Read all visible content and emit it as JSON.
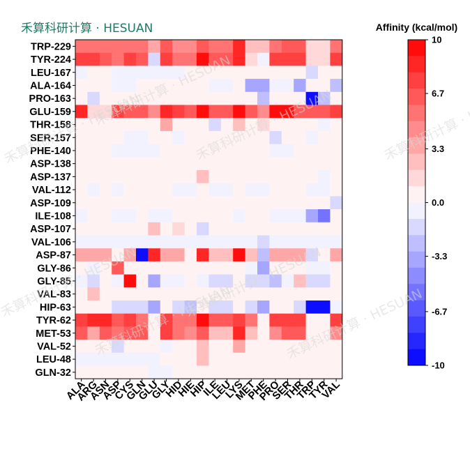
{
  "brand": {
    "text": "禾算科研计算 · HESUAN",
    "color": "#1d7a63"
  },
  "watermark": {
    "text": "禾算科研计算 · HESUAN"
  },
  "chart_data": {
    "type": "heatmap",
    "title": "",
    "xlabel": "",
    "ylabel": "",
    "colorbar": {
      "title": "Affinity (kcal/mol)",
      "min": -10,
      "max": 10,
      "levels": 20,
      "tick_values": [
        10,
        6.7,
        3.3,
        0.0,
        -3.3,
        -6.7,
        -10
      ],
      "tick_labels": [
        "10",
        "6.7",
        "3.3",
        "0.0",
        "-3.3",
        "-6.7",
        "-10"
      ],
      "colors": {
        "low": "#0000ff",
        "mid": "#ffffff",
        "high": "#ff0000"
      }
    },
    "x_categories": [
      "ALA",
      "ARG",
      "ASN",
      "ASP",
      "CYS",
      "GLN",
      "GLU",
      "GLY",
      "HID",
      "HIE",
      "HIP",
      "ILE",
      "LEU",
      "LYS",
      "MET",
      "PHE",
      "PRO",
      "SER",
      "THR",
      "TRP",
      "TYR",
      "VAL"
    ],
    "y_categories": [
      "TRP-229",
      "TYR-224",
      "LEU-167",
      "ALA-164",
      "PRO-163",
      "GLU-159",
      "THR-158",
      "SER-157",
      "PHE-140",
      "ASP-138",
      "ASP-137",
      "VAL-112",
      "ASP-109",
      "ILE-108",
      "ASP-107",
      "VAL-106",
      "ASP-87",
      "GLY-86",
      "GLY-85",
      "VAL-83",
      "HIP-63",
      "TYR-62",
      "MET-53",
      "VAL-52",
      "LEU-48",
      "GLN-32"
    ],
    "values": [
      [
        5.5,
        5.5,
        5.5,
        5.5,
        5.5,
        5.5,
        3.5,
        6.5,
        4.5,
        4.5,
        6.5,
        5.5,
        5.5,
        8.5,
        2.0,
        2.0,
        5.0,
        6.0,
        6.0,
        1.0,
        1.0,
        5.5
      ],
      [
        7.0,
        7.0,
        6.5,
        5.5,
        7.0,
        6.0,
        -2.0,
        7.5,
        5.5,
        5.5,
        9.5,
        6.5,
        6.5,
        8.5,
        1.0,
        -0.5,
        7.0,
        7.0,
        7.0,
        1.5,
        1.5,
        7.0
      ],
      [
        -0.5,
        0.5,
        0.5,
        -0.5,
        -0.5,
        -0.5,
        -0.5,
        -0.5,
        -0.5,
        0.5,
        0.5,
        0.5,
        0.5,
        0.5,
        0.5,
        0.5,
        0.5,
        0.5,
        0.5,
        -1.5,
        0.5,
        0.5
      ],
      [
        0.5,
        0.5,
        0.5,
        -0.5,
        -0.5,
        0.5,
        0.5,
        0.5,
        0.5,
        0.5,
        0.5,
        -0.5,
        -0.5,
        0.5,
        -3.5,
        -3.5,
        -0.5,
        -0.5,
        -4.0,
        0.5,
        0.5,
        -2.5
      ],
      [
        0.5,
        -1.5,
        0.5,
        0.5,
        0.5,
        0.5,
        0.5,
        0.5,
        0.5,
        0.5,
        0.5,
        0.5,
        0.5,
        0.5,
        0.5,
        -2.5,
        0.5,
        0.5,
        0.5,
        -9.5,
        -3.0,
        0.5
      ],
      [
        8.5,
        1.0,
        1.5,
        7.5,
        6.5,
        6.5,
        4.5,
        8.0,
        7.0,
        6.5,
        9.0,
        6.5,
        6.5,
        9.0,
        6.5,
        4.5,
        9.5,
        9.0,
        6.5,
        6.5,
        6.5,
        7.0
      ],
      [
        0.5,
        0.5,
        0.5,
        0.5,
        0.5,
        0.5,
        0.5,
        3.0,
        0.5,
        0.5,
        0.5,
        -1.5,
        0.5,
        2.5,
        0.5,
        1.5,
        0.5,
        0.5,
        0.5,
        0.5,
        -1.0,
        0.5
      ],
      [
        0.5,
        0.5,
        0.5,
        0.5,
        -0.5,
        -0.5,
        0.5,
        0.5,
        -0.5,
        0.5,
        0.5,
        0.5,
        0.5,
        0.5,
        0.5,
        0.5,
        -1.5,
        0.5,
        0.5,
        -0.5,
        0.5,
        0.5
      ],
      [
        0.5,
        0.5,
        0.5,
        -0.5,
        -0.5,
        -0.5,
        -0.5,
        0.5,
        0.5,
        0.5,
        0.5,
        0.5,
        0.5,
        0.5,
        0.5,
        0.5,
        -0.5,
        -0.5,
        0.5,
        0.5,
        0.5,
        0.5
      ],
      [
        0.5,
        0.5,
        0.5,
        0.5,
        0.5,
        0.5,
        0.5,
        0.5,
        0.5,
        0.5,
        0.5,
        0.5,
        0.5,
        0.5,
        0.5,
        0.5,
        0.5,
        0.5,
        0.5,
        0.5,
        0.5,
        0.5
      ],
      [
        0.5,
        0.5,
        0.5,
        0.5,
        0.5,
        0.5,
        0.5,
        0.5,
        0.5,
        0.5,
        2.5,
        0.5,
        0.5,
        0.5,
        0.5,
        0.5,
        0.5,
        0.5,
        0.5,
        0.5,
        -0.5,
        0.5
      ],
      [
        0.5,
        -0.5,
        0.5,
        -0.5,
        0.5,
        0.5,
        0.5,
        0.5,
        -0.5,
        -0.5,
        0.5,
        -0.5,
        -0.5,
        0.5,
        -0.5,
        -0.5,
        0.5,
        0.5,
        0.5,
        -0.5,
        -0.5,
        0.5
      ],
      [
        0.5,
        0.5,
        0.5,
        0.5,
        0.5,
        0.5,
        0.5,
        0.5,
        0.5,
        0.5,
        0.5,
        0.5,
        0.5,
        0.5,
        0.5,
        0.5,
        0.5,
        0.5,
        0.5,
        0.5,
        0.5,
        -1.5
      ],
      [
        -0.5,
        0.5,
        0.5,
        -0.5,
        -0.5,
        0.5,
        -0.5,
        -0.5,
        0.5,
        0.5,
        0.5,
        0.5,
        0.5,
        -0.5,
        0.5,
        0.5,
        -0.5,
        -0.5,
        -0.5,
        -3.5,
        -5.5,
        0.5
      ],
      [
        0.5,
        0.5,
        0.5,
        0.5,
        0.5,
        0.5,
        2.0,
        0.5,
        1.5,
        0.5,
        -1.5,
        0.5,
        0.5,
        0.5,
        0.5,
        0.5,
        0.5,
        0.5,
        0.5,
        0.5,
        0.5,
        0.5
      ],
      [
        -0.5,
        -0.5,
        -0.5,
        -0.5,
        -0.5,
        -0.5,
        -0.5,
        -0.5,
        -0.5,
        -0.5,
        -0.5,
        -0.5,
        -0.5,
        -0.5,
        -0.5,
        -2.0,
        -0.5,
        -0.5,
        -0.5,
        -0.5,
        -0.5,
        -0.5
      ],
      [
        3.0,
        3.0,
        3.0,
        0.5,
        3.0,
        -9.5,
        8.5,
        3.0,
        3.0,
        0.5,
        8.0,
        2.5,
        2.5,
        9.0,
        2.0,
        -2.5,
        3.5,
        3.5,
        3.5,
        -1.5,
        0.5,
        3.0
      ],
      [
        0.5,
        -0.5,
        0.5,
        6.5,
        0.5,
        0.5,
        0.5,
        0.5,
        0.5,
        0.5,
        0.5,
        0.5,
        0.5,
        0.5,
        -0.5,
        -4.0,
        0.5,
        0.5,
        0.5,
        -1.0,
        -1.0,
        0.5
      ],
      [
        -0.5,
        -1.5,
        0.5,
        -0.5,
        9.0,
        0.5,
        -4.0,
        -0.5,
        -0.5,
        0.5,
        -0.5,
        -2.0,
        -2.0,
        0.5,
        -1.5,
        -1.5,
        -3.0,
        -0.5,
        2.5,
        -1.5,
        -1.5,
        0.5
      ],
      [
        0.5,
        2.5,
        0.5,
        0.5,
        0.5,
        0.5,
        0.5,
        0.5,
        0.5,
        0.5,
        0.5,
        0.5,
        0.5,
        0.5,
        0.5,
        0.5,
        0.5,
        0.5,
        0.5,
        0.5,
        0.5,
        0.5
      ],
      [
        0.5,
        0.5,
        0.5,
        -1.5,
        -1.5,
        -1.5,
        -3.5,
        0.5,
        -1.5,
        -2.5,
        0.5,
        -1.5,
        -1.5,
        0.5,
        -1.5,
        -3.5,
        0.5,
        0.5,
        -1.5,
        -9.5,
        -9.5,
        -1.0
      ],
      [
        7.5,
        8.0,
        8.5,
        6.5,
        7.0,
        5.5,
        0.5,
        7.5,
        5.5,
        5.5,
        9.5,
        6.5,
        6.5,
        7.5,
        5.5,
        0.5,
        7.5,
        7.5,
        7.5,
        0.5,
        0.5,
        7.5
      ],
      [
        6.0,
        3.0,
        6.5,
        5.5,
        6.5,
        6.5,
        0.5,
        7.5,
        5.5,
        4.5,
        6.5,
        2.5,
        2.5,
        8.5,
        2.5,
        0.5,
        4.0,
        6.5,
        6.0,
        0.5,
        0.5,
        4.5
      ],
      [
        0.5,
        0.5,
        0.5,
        -1.5,
        0.5,
        0.5,
        0.5,
        -0.5,
        0.5,
        0.5,
        2.0,
        0.5,
        0.5,
        3.0,
        0.5,
        0.5,
        0.5,
        0.5,
        0.5,
        0.5,
        0.5,
        0.5
      ],
      [
        -0.5,
        -0.5,
        -0.5,
        -0.5,
        -0.5,
        -0.5,
        -0.5,
        0.5,
        0.5,
        0.5,
        2.5,
        0.5,
        0.5,
        0.5,
        0.5,
        0.5,
        0.5,
        0.5,
        0.5,
        0.5,
        0.5,
        0.5
      ],
      [
        0.5,
        0.5,
        0.5,
        0.5,
        0.5,
        0.5,
        -0.5,
        -0.5,
        0.5,
        0.5,
        0.5,
        0.5,
        0.5,
        0.5,
        0.5,
        0.5,
        0.5,
        0.5,
        0.5,
        0.5,
        0.5,
        0.5
      ]
    ]
  }
}
